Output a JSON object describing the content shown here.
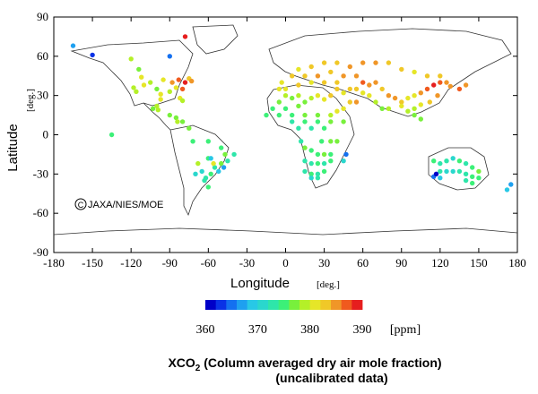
{
  "chart_data": {
    "type": "scatter",
    "title": "XCO2 (Column averaged dry air mole fraction)",
    "subtitle": "(uncalibrated data)",
    "xlabel": "Longitude",
    "xlabel_unit": "[deg.]",
    "ylabel": "Latitude",
    "ylabel_unit": "[deg.]",
    "xlim": [
      -180,
      180
    ],
    "ylim": [
      -90,
      90
    ],
    "x_ticks": [
      -180,
      -150,
      -120,
      -90,
      -60,
      -30,
      0,
      30,
      60,
      90,
      120,
      150,
      180
    ],
    "y_ticks": [
      -90,
      -60,
      -30,
      0,
      30,
      60,
      90
    ],
    "copyright": "JAXA/NIES/MOE",
    "colorbar": {
      "min": 360,
      "max": 390,
      "unit": "[ppm]",
      "tick_labels": [
        360,
        370,
        380,
        390
      ],
      "colors": [
        "#0000c8",
        "#0a32e6",
        "#1470f0",
        "#1ea0f0",
        "#28c8e6",
        "#2ad7cd",
        "#2ee6aa",
        "#3cf078",
        "#78f03c",
        "#b4f028",
        "#e6e628",
        "#f0c828",
        "#f09628",
        "#f05a1e",
        "#e61e1e"
      ]
    },
    "points": [
      [
        -165,
        68,
        367
      ],
      [
        -150,
        61,
        362
      ],
      [
        -120,
        58,
        378
      ],
      [
        -114,
        50,
        376
      ],
      [
        -112,
        44,
        380
      ],
      [
        -118,
        36,
        379
      ],
      [
        -116,
        33,
        378
      ],
      [
        -110,
        38,
        381
      ],
      [
        -105,
        40,
        379
      ],
      [
        -100,
        35,
        377
      ],
      [
        -97,
        31,
        381
      ],
      [
        -95,
        42,
        380
      ],
      [
        -90,
        33,
        378
      ],
      [
        -88,
        40,
        384
      ],
      [
        -85,
        36,
        381
      ],
      [
        -83,
        42,
        386
      ],
      [
        -80,
        35,
        387
      ],
      [
        -78,
        40,
        388
      ],
      [
        -75,
        43,
        382
      ],
      [
        -73,
        41,
        385
      ],
      [
        -82,
        28,
        380
      ],
      [
        -80,
        26,
        378
      ],
      [
        -100,
        22,
        379
      ],
      [
        -99,
        19,
        378
      ],
      [
        -103,
        20,
        376
      ],
      [
        -97,
        27,
        380
      ],
      [
        -90,
        15,
        377
      ],
      [
        -85,
        13,
        376
      ],
      [
        -84,
        10,
        378
      ],
      [
        -80,
        10,
        376
      ],
      [
        -75,
        5,
        377
      ],
      [
        -72,
        -5,
        375
      ],
      [
        -60,
        -5,
        374
      ],
      [
        -50,
        -10,
        374
      ],
      [
        -47,
        -15,
        376
      ],
      [
        -45,
        -20,
        373
      ],
      [
        -50,
        -22,
        377
      ],
      [
        -55,
        -25,
        372
      ],
      [
        -58,
        -30,
        374
      ],
      [
        -62,
        -33,
        373
      ],
      [
        -65,
        -28,
        370
      ],
      [
        -68,
        -22,
        378
      ],
      [
        -60,
        -18,
        375
      ],
      [
        -52,
        -28,
        368
      ],
      [
        -48,
        -25,
        366
      ],
      [
        -60,
        -40,
        374
      ],
      [
        -63,
        -35,
        372
      ],
      [
        -56,
        -22,
        380
      ],
      [
        -40,
        -15,
        372
      ],
      [
        -58,
        -18,
        368
      ],
      [
        -70,
        -30,
        370
      ],
      [
        -135,
        0,
        375
      ],
      [
        -5,
        35,
        381
      ],
      [
        0,
        30,
        378
      ],
      [
        5,
        28,
        377
      ],
      [
        10,
        30,
        379
      ],
      [
        -5,
        25,
        376
      ],
      [
        -10,
        20,
        375
      ],
      [
        0,
        20,
        374
      ],
      [
        10,
        22,
        377
      ],
      [
        15,
        25,
        376
      ],
      [
        20,
        28,
        378
      ],
      [
        25,
        30,
        380
      ],
      [
        30,
        27,
        381
      ],
      [
        35,
        30,
        382
      ],
      [
        -15,
        15,
        375
      ],
      [
        -5,
        15,
        374
      ],
      [
        5,
        15,
        375
      ],
      [
        15,
        15,
        376
      ],
      [
        25,
        15,
        377
      ],
      [
        35,
        15,
        378
      ],
      [
        40,
        18,
        380
      ],
      [
        45,
        20,
        381
      ],
      [
        50,
        25,
        383
      ],
      [
        55,
        25,
        384
      ],
      [
        5,
        10,
        373
      ],
      [
        15,
        10,
        374
      ],
      [
        25,
        10,
        375
      ],
      [
        35,
        10,
        376
      ],
      [
        45,
        10,
        377
      ],
      [
        10,
        5,
        373
      ],
      [
        20,
        5,
        372
      ],
      [
        30,
        5,
        374
      ],
      [
        0,
        35,
        380
      ],
      [
        10,
        38,
        382
      ],
      [
        20,
        40,
        381
      ],
      [
        30,
        40,
        383
      ],
      [
        40,
        40,
        382
      ],
      [
        -3,
        40,
        381
      ],
      [
        5,
        45,
        382
      ],
      [
        15,
        45,
        383
      ],
      [
        25,
        45,
        384
      ],
      [
        35,
        48,
        383
      ],
      [
        45,
        45,
        385
      ],
      [
        55,
        45,
        384
      ],
      [
        60,
        40,
        386
      ],
      [
        65,
        38,
        385
      ],
      [
        70,
        40,
        384
      ],
      [
        75,
        35,
        383
      ],
      [
        80,
        30,
        384
      ],
      [
        85,
        28,
        385
      ],
      [
        90,
        25,
        382
      ],
      [
        95,
        28,
        380
      ],
      [
        100,
        30,
        381
      ],
      [
        105,
        32,
        385
      ],
      [
        110,
        35,
        387
      ],
      [
        115,
        38,
        388
      ],
      [
        120,
        40,
        386
      ],
      [
        118,
        30,
        384
      ],
      [
        112,
        25,
        383
      ],
      [
        105,
        23,
        381
      ],
      [
        100,
        20,
        379
      ],
      [
        95,
        18,
        378
      ],
      [
        90,
        22,
        380
      ],
      [
        80,
        20,
        378
      ],
      [
        75,
        20,
        377
      ],
      [
        70,
        25,
        378
      ],
      [
        65,
        30,
        380
      ],
      [
        60,
        32,
        381
      ],
      [
        55,
        35,
        383
      ],
      [
        50,
        35,
        382
      ],
      [
        45,
        32,
        381
      ],
      [
        40,
        35,
        382
      ],
      [
        10,
        50,
        381
      ],
      [
        20,
        52,
        382
      ],
      [
        30,
        55,
        383
      ],
      [
        40,
        55,
        382
      ],
      [
        50,
        52,
        384
      ],
      [
        60,
        55,
        385
      ],
      [
        70,
        55,
        384
      ],
      [
        80,
        55,
        383
      ],
      [
        90,
        50,
        382
      ],
      [
        100,
        48,
        381
      ],
      [
        110,
        45,
        383
      ],
      [
        120,
        45,
        382
      ],
      [
        125,
        40,
        384
      ],
      [
        128,
        37,
        385
      ],
      [
        135,
        35,
        386
      ],
      [
        140,
        38,
        384
      ],
      [
        100,
        15,
        377
      ],
      [
        105,
        12,
        376
      ],
      [
        -78,
        75,
        388
      ],
      [
        -90,
        60,
        365
      ],
      [
        15,
        -10,
        376
      ],
      [
        20,
        -12,
        375
      ],
      [
        25,
        -15,
        374
      ],
      [
        30,
        -15,
        376
      ],
      [
        35,
        -15,
        375
      ],
      [
        15,
        -20,
        373
      ],
      [
        20,
        -22,
        372
      ],
      [
        25,
        -22,
        374
      ],
      [
        30,
        -22,
        373
      ],
      [
        35,
        -20,
        375
      ],
      [
        15,
        -28,
        372
      ],
      [
        20,
        -30,
        374
      ],
      [
        25,
        -30,
        373
      ],
      [
        30,
        -28,
        375
      ],
      [
        20,
        -33,
        371
      ],
      [
        25,
        -33,
        372
      ],
      [
        47,
        -15,
        364
      ],
      [
        45,
        -20,
        370
      ],
      [
        40,
        -5,
        376
      ],
      [
        35,
        -5,
        377
      ],
      [
        28,
        -5,
        374
      ],
      [
        12,
        -5,
        373
      ],
      [
        115,
        -20,
        374
      ],
      [
        120,
        -22,
        373
      ],
      [
        125,
        -20,
        372
      ],
      [
        130,
        -18,
        371
      ],
      [
        135,
        -20,
        374
      ],
      [
        140,
        -22,
        373
      ],
      [
        145,
        -25,
        375
      ],
      [
        150,
        -28,
        376
      ],
      [
        120,
        -28,
        372
      ],
      [
        125,
        -28,
        370
      ],
      [
        130,
        -28,
        371
      ],
      [
        135,
        -28,
        372
      ],
      [
        140,
        -30,
        373
      ],
      [
        145,
        -32,
        374
      ],
      [
        150,
        -33,
        375
      ],
      [
        120,
        -33,
        368
      ],
      [
        115,
        -32,
        364
      ],
      [
        117,
        -30,
        360
      ],
      [
        140,
        -35,
        372
      ],
      [
        145,
        -37,
        374
      ],
      [
        172,
        -42,
        369
      ],
      [
        175,
        -38,
        367
      ]
    ]
  }
}
